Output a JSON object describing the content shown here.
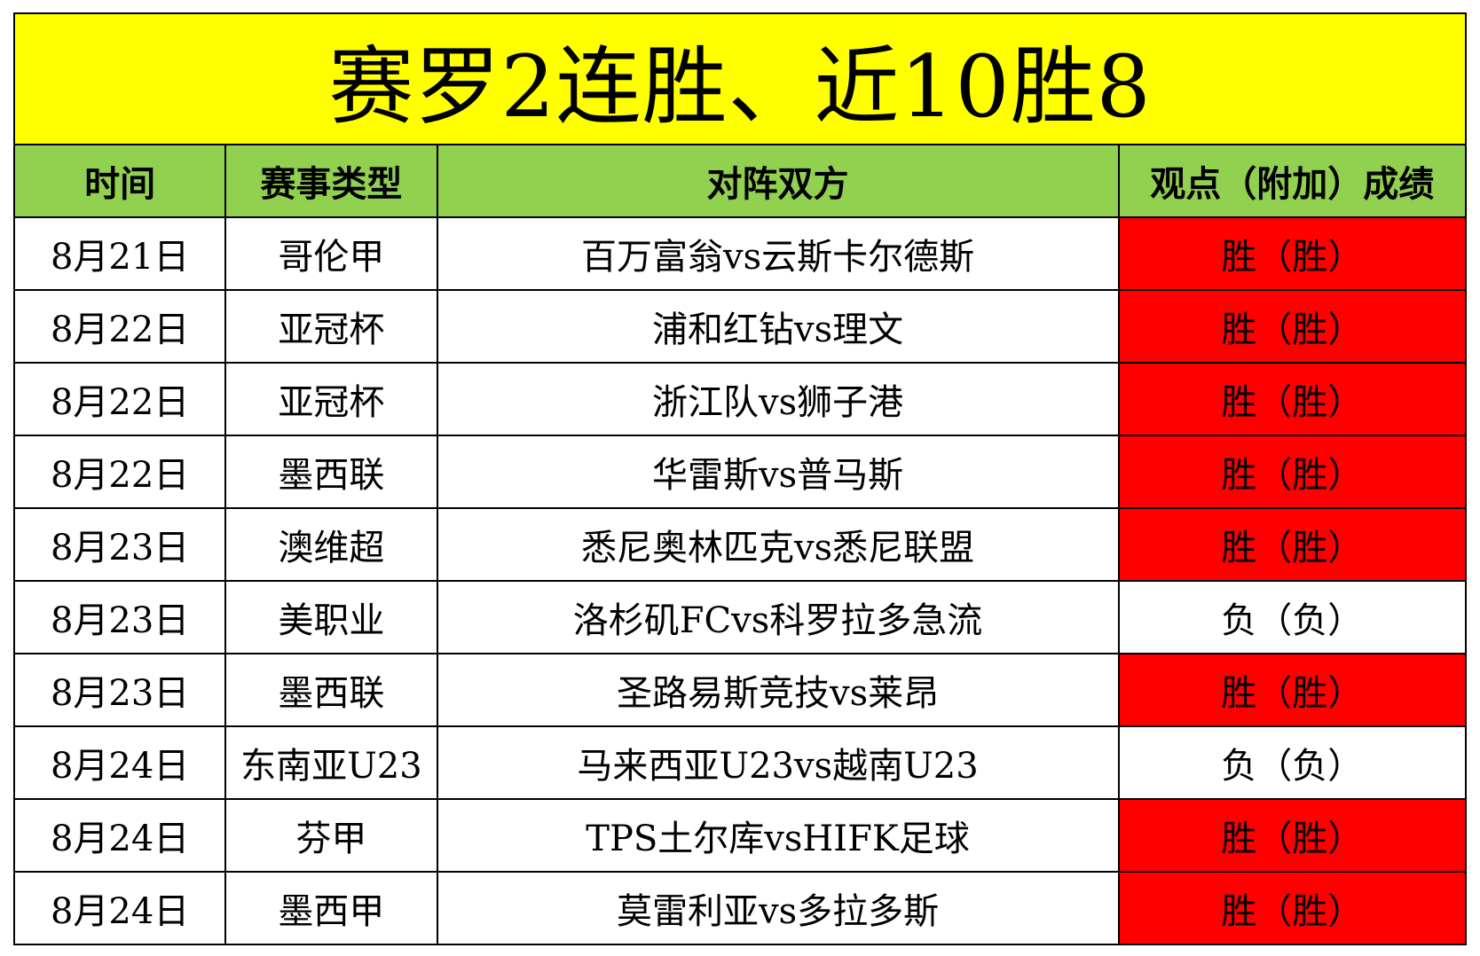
{
  "title": "赛罗2连胜、近10胜8",
  "columns": [
    "时间",
    "赛事类型",
    "对阵双方",
    "观点（附加）成绩"
  ],
  "colors": {
    "title_bg": "#ffff00",
    "header_bg": "#92d050",
    "win_bg": "#ff0000",
    "loss_bg": "#ffffff"
  },
  "rows": [
    {
      "date": "8月21日",
      "league": "哥伦甲",
      "match": "百万富翁vs云斯卡尔德斯",
      "result": "胜（胜）",
      "outcome": "win"
    },
    {
      "date": "8月22日",
      "league": "亚冠杯",
      "match": "浦和红钻vs理文",
      "result": "胜（胜）",
      "outcome": "win"
    },
    {
      "date": "8月22日",
      "league": "亚冠杯",
      "match": "浙江队vs狮子港",
      "result": "胜（胜）",
      "outcome": "win"
    },
    {
      "date": "8月22日",
      "league": "墨西联",
      "match": "华雷斯vs普马斯",
      "result": "胜（胜）",
      "outcome": "win"
    },
    {
      "date": "8月23日",
      "league": "澳维超",
      "match": "悉尼奥林匹克vs悉尼联盟",
      "result": "胜（胜）",
      "outcome": "win"
    },
    {
      "date": "8月23日",
      "league": "美职业",
      "match": "洛杉矶FCvs科罗拉多急流",
      "result": "负（负）",
      "outcome": "loss"
    },
    {
      "date": "8月23日",
      "league": "墨西联",
      "match": "圣路易斯竞技vs莱昂",
      "result": "胜（胜）",
      "outcome": "win"
    },
    {
      "date": "8月24日",
      "league": "东南亚U23",
      "match": "马来西亚U23vs越南U23",
      "result": "负（负）",
      "outcome": "loss"
    },
    {
      "date": "8月24日",
      "league": "芬甲",
      "match": "TPS土尔库vsHIFK足球",
      "result": "胜（胜）",
      "outcome": "win"
    },
    {
      "date": "8月24日",
      "league": "墨西甲",
      "match": "莫雷利亚vs多拉多斯",
      "result": "胜（胜）",
      "outcome": "win"
    }
  ]
}
